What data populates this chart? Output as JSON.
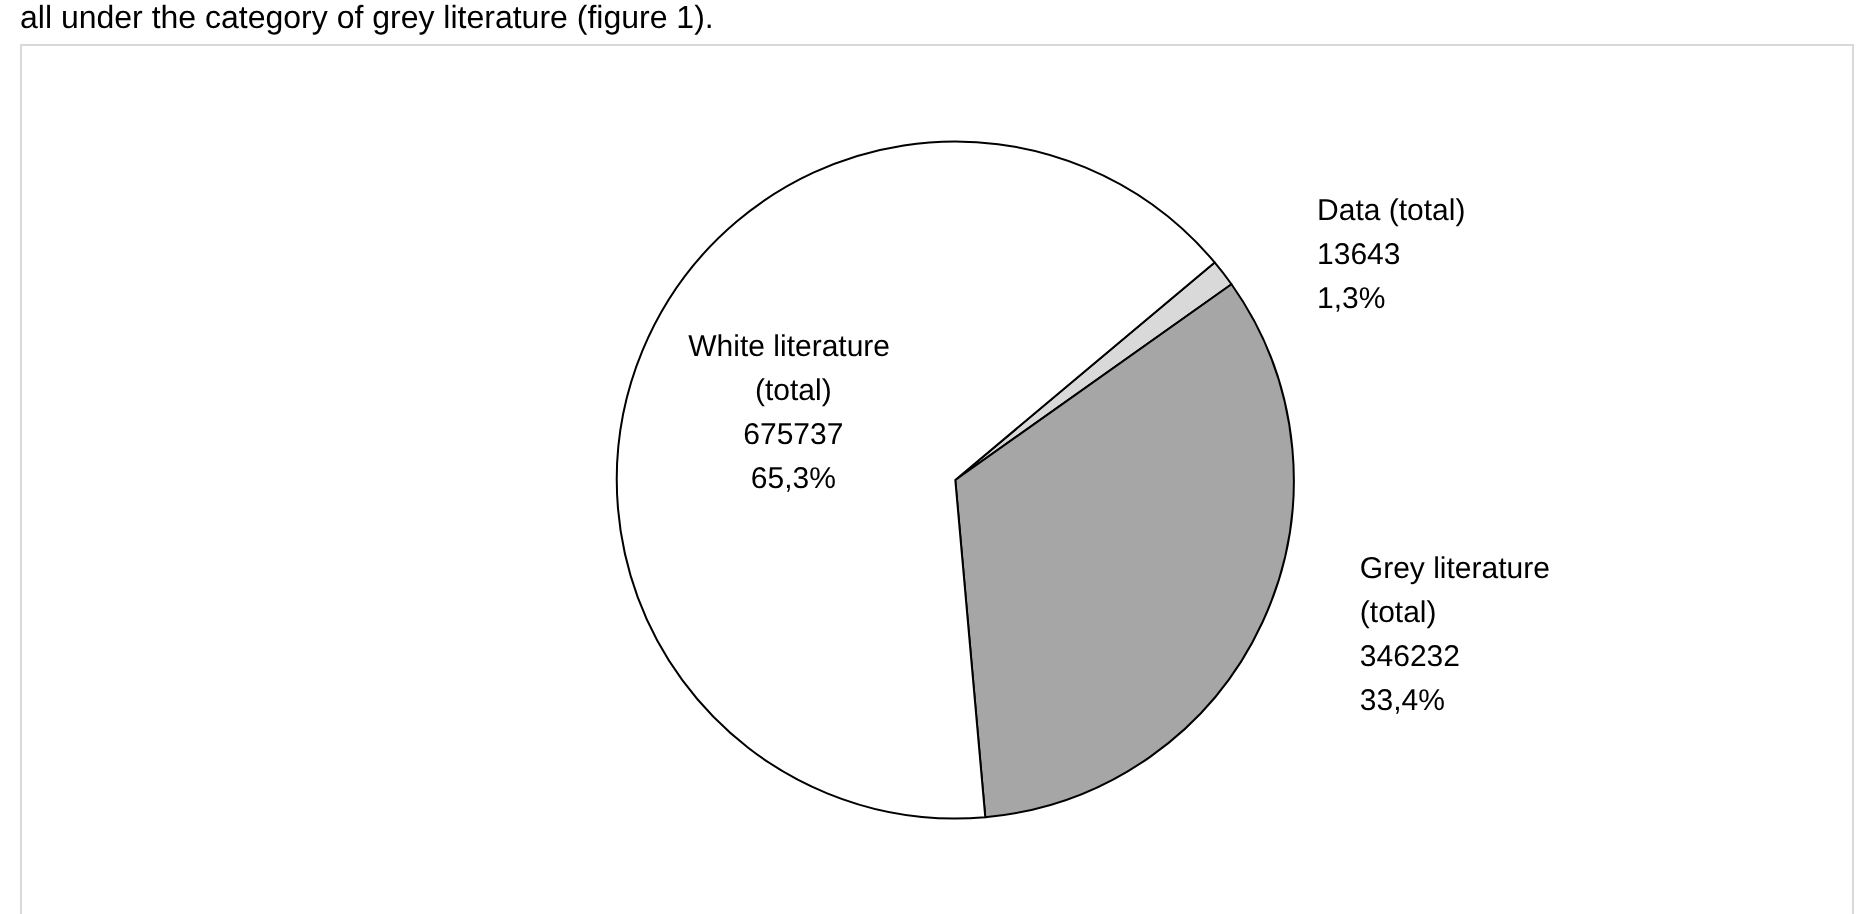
{
  "chart_data": {
    "type": "pie",
    "categories": [
      "Data (total)",
      "Grey literature (total)",
      "White literature (total)"
    ],
    "values": [
      1.3,
      33.4,
      65.3
    ],
    "value_labels": [
      "13643\n1,3%",
      "346232\n33,4%",
      "675737\n65,3%"
    ],
    "colors": [
      "#d9d9d9",
      "#a6a6a6",
      "#ffffff"
    ],
    "legend": false,
    "annotations": [
      "all under the category of grey literature (figure 1)."
    ]
  }
}
